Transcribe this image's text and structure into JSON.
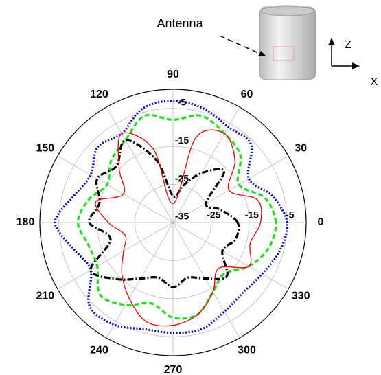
{
  "chart_data": {
    "type": "polar",
    "annotations": [
      "Antenna",
      "Z",
      "X"
    ],
    "theta": [
      0,
      15,
      30,
      45,
      60,
      75,
      90,
      105,
      120,
      135,
      150,
      165,
      180,
      195,
      210,
      225,
      240,
      255,
      270,
      285,
      300,
      315,
      330,
      345
    ],
    "rlim": [
      -35,
      0
    ],
    "rticks": [
      -35,
      -25,
      -15,
      -5
    ],
    "thetaticks": [
      0,
      30,
      60,
      90,
      120,
      150,
      180,
      210,
      240,
      270,
      300,
      330
    ],
    "grid": true,
    "series": [
      {
        "color": "#0000cc",
        "linestyle": "dotted",
        "values": [
          -5,
          -8,
          -12,
          -6,
          -6,
          -4,
          -3,
          -4,
          -8,
          -7,
          -10,
          -8,
          -4,
          -8,
          -10,
          -4,
          -4,
          -6,
          -6,
          -6,
          -8,
          -9,
          -8,
          -6
        ]
      },
      {
        "color": "#22dd22",
        "linestyle": "dashed",
        "values": [
          -8,
          -10,
          -15,
          -10,
          -8,
          -6,
          -8,
          -6,
          -10,
          -12,
          -15,
          -12,
          -10,
          -12,
          -12,
          -8,
          -10,
          -13,
          -10,
          -10,
          -14,
          -16,
          -12,
          -9
        ]
      },
      {
        "color": "#000000",
        "linestyle": "dashdot",
        "values": [
          -18,
          -22,
          -25,
          -16,
          -20,
          -25,
          -28,
          -18,
          -10,
          -14,
          -12,
          -15,
          -13,
          -18,
          -10,
          -14,
          -18,
          -20,
          -18,
          -20,
          -18,
          -15,
          -20,
          -18
        ]
      },
      {
        "color": "#ee0000",
        "linestyle": "solid",
        "values": [
          -12,
          -12,
          -18,
          -12,
          -8,
          -12,
          -30,
          -15,
          -8,
          -15,
          -20,
          -14,
          -18,
          -22,
          -20,
          -16,
          -12,
          -8,
          -8,
          -10,
          -14,
          -18,
          -12,
          -14
        ]
      }
    ]
  }
}
